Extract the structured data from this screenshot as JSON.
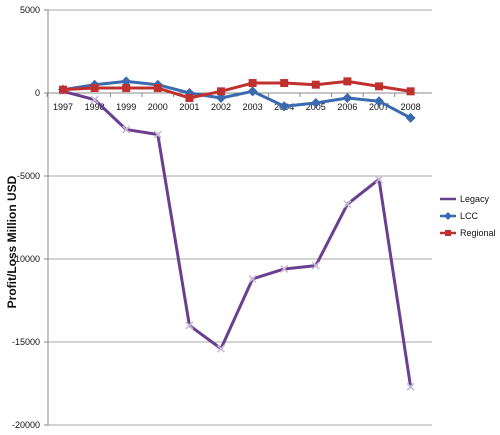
{
  "chart_data": {
    "type": "line",
    "title": "",
    "xlabel": "",
    "ylabel": "Profit/Loss  Million USD",
    "ylim": [
      -20000,
      5000
    ],
    "yticks": [
      5000,
      0,
      -5000,
      -10000,
      -15000,
      -20000
    ],
    "grid": "horizontal",
    "legend_position": "right",
    "x": [
      "1997",
      "1998",
      "1999",
      "2000",
      "2001",
      "2002",
      "2003",
      "2004",
      "2005",
      "2006",
      "2007",
      "2008"
    ],
    "series": [
      {
        "name": "Legacy",
        "color": "#6b3f8f",
        "marker": "x",
        "values": [
          100,
          -400,
          -2200,
          -2500,
          -14000,
          -15400,
          -11200,
          -10600,
          -10400,
          -6700,
          -5200,
          -17700
        ]
      },
      {
        "name": "LCC",
        "color": "#3a6ab0",
        "marker": "diamond",
        "values": [
          200,
          500,
          700,
          500,
          0,
          -300,
          100,
          -800,
          -600,
          -300,
          -500,
          -1500
        ]
      },
      {
        "name": "Regional",
        "color": "#c0302e",
        "marker": "square",
        "values": [
          200,
          300,
          300,
          300,
          -300,
          100,
          600,
          600,
          500,
          700,
          400,
          100
        ]
      }
    ]
  }
}
